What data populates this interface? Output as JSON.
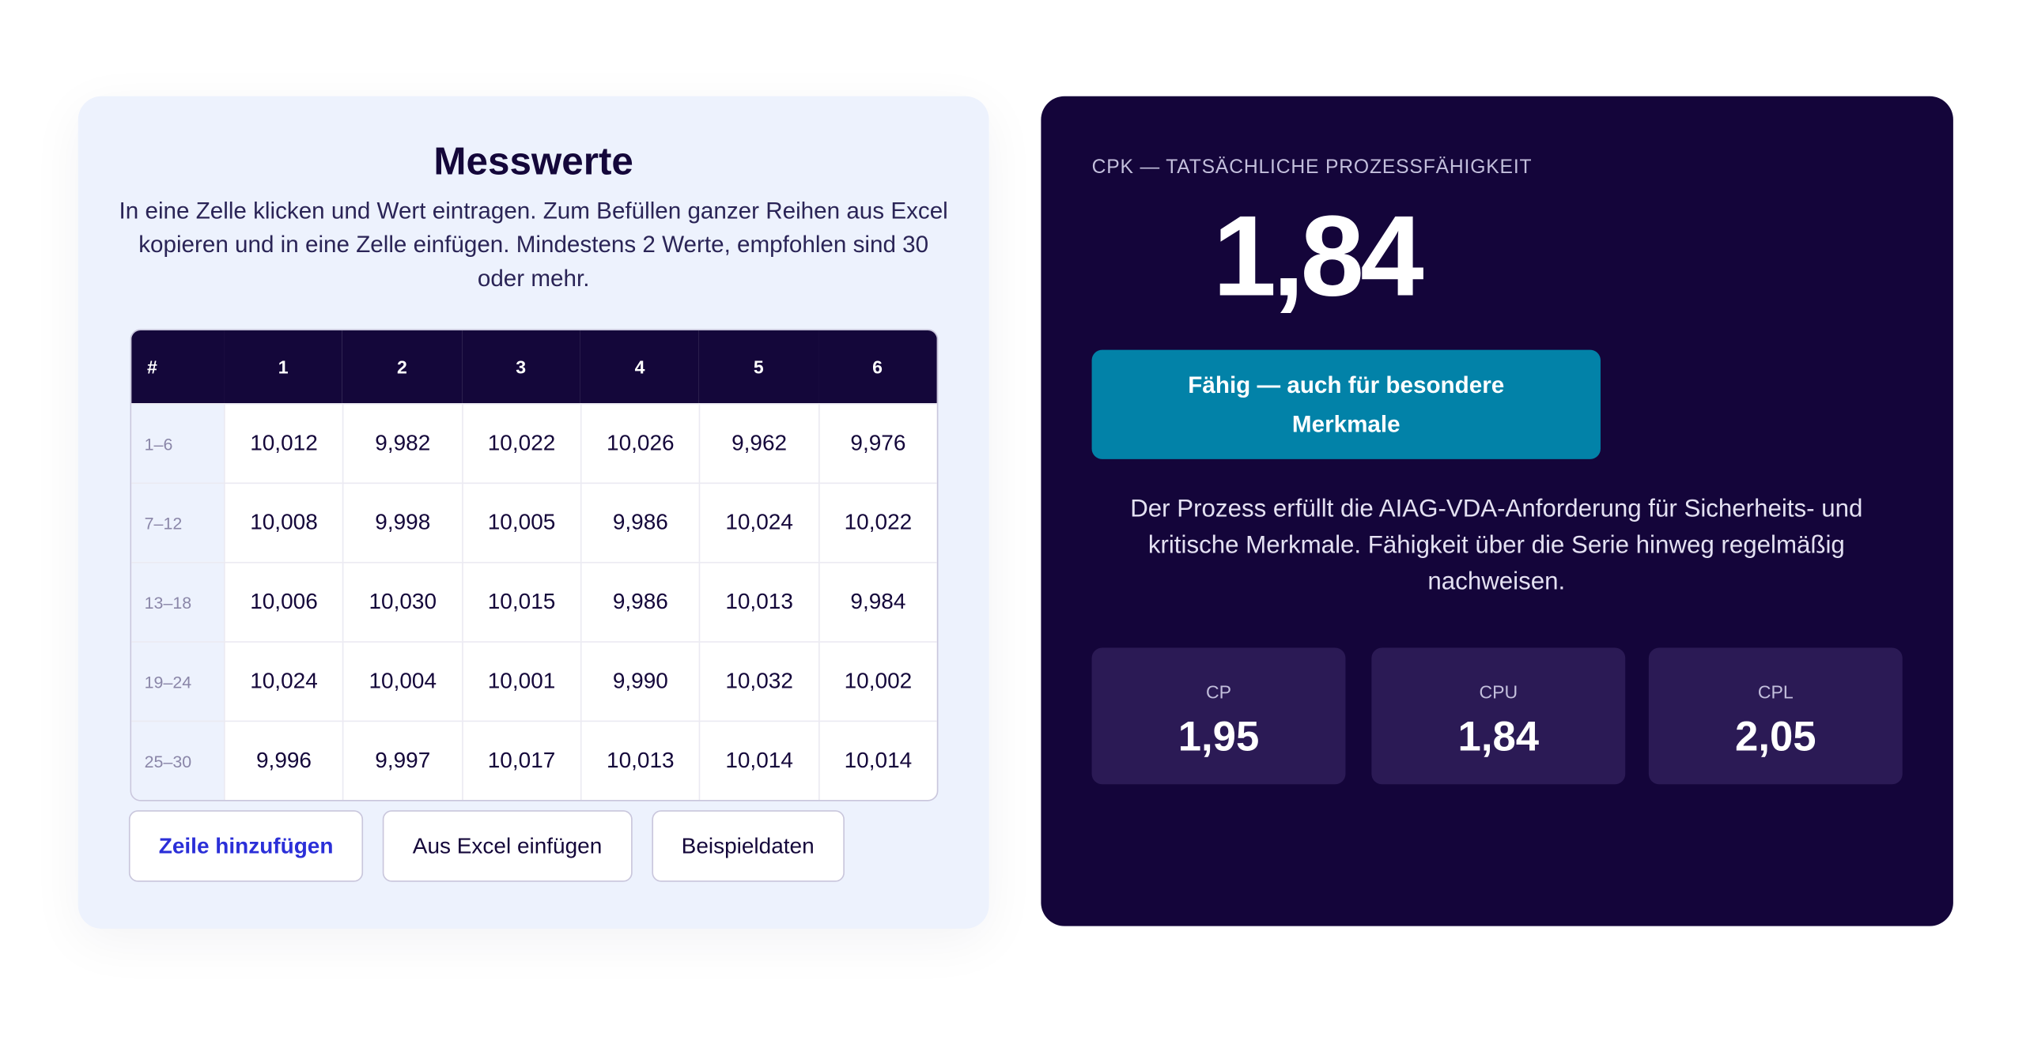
{
  "left": {
    "title": "Messwerte",
    "description": "In eine Zelle klicken und Wert eintragen. Zum Befüllen ganzer Reihen aus Excel kopieren und in eine Zelle einfügen. Mindestens 2 Werte, empfohlen sind 30 oder mehr.",
    "table": {
      "header": [
        "#",
        "1",
        "2",
        "3",
        "4",
        "5",
        "6"
      ],
      "rows": [
        [
          "1–6",
          "10,012",
          "9,982",
          "10,022",
          "10,026",
          "9,962",
          "9,976"
        ],
        [
          "7–12",
          "10,008",
          "9,998",
          "10,005",
          "9,986",
          "10,024",
          "10,022"
        ],
        [
          "13–18",
          "10,006",
          "10,030",
          "10,015",
          "9,986",
          "10,013",
          "9,984"
        ],
        [
          "19–24",
          "10,024",
          "10,004",
          "10,001",
          "9,990",
          "10,032",
          "10,002"
        ],
        [
          "25–30",
          "9,996",
          "9,997",
          "10,017",
          "10,013",
          "10,014",
          "10,014"
        ]
      ]
    },
    "buttons": [
      "Zeile hinzufügen",
      "Aus Excel einfügen",
      "Beispieldaten"
    ]
  },
  "right": {
    "label": "CPK — TATSÄCHLICHE PROZESSFÄHIGKEIT",
    "value": "1,84",
    "badge": "Fähig — auch für besondere Merkmale",
    "description": "Der Prozess erfüllt die AIAG-VDA-Anforderung für Sicherheits- und kritische Merkmale. Fähigkeit über die Serie hinweg regelmäßig nachweisen.",
    "metrics": [
      {
        "label": "CP",
        "value": "1,95"
      },
      {
        "label": "CPU",
        "value": "1,84"
      },
      {
        "label": "CPL",
        "value": "2,05"
      }
    ]
  }
}
